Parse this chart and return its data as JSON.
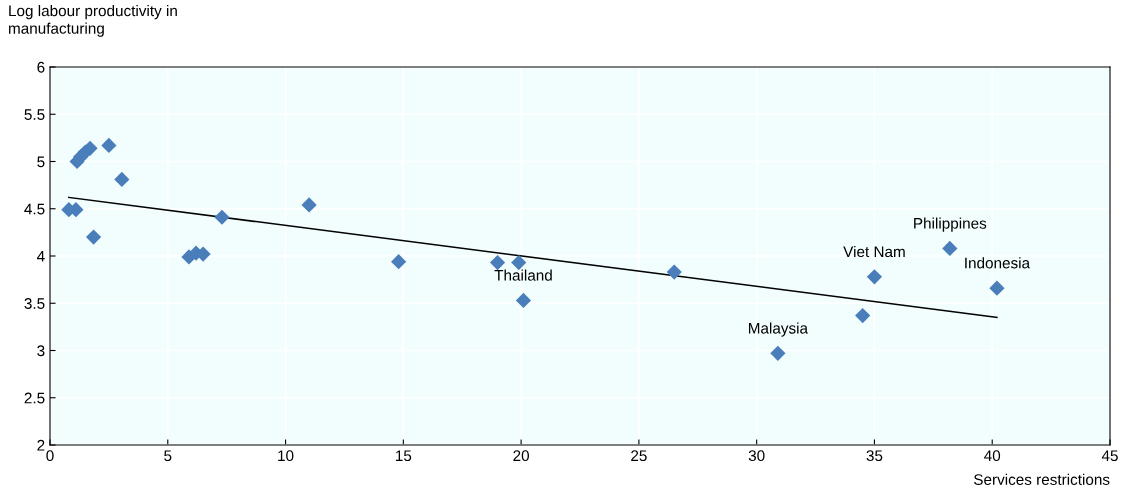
{
  "chart_data": {
    "type": "scatter",
    "xlabel": "Services restrictions",
    "ylabel": "Log labour productivity in\nmanufacturing",
    "xlim": [
      0,
      45
    ],
    "ylim": [
      2,
      6
    ],
    "xticks": [
      0,
      5,
      10,
      15,
      20,
      25,
      30,
      35,
      40,
      45
    ],
    "yticks": [
      2,
      2.5,
      3,
      3.5,
      4,
      4.5,
      5,
      5.5,
      6
    ],
    "grid": true,
    "series": [
      {
        "marker": "diamond",
        "color": "#4a7ebb",
        "x": [
          0.8,
          1.1,
          1.15,
          1.3,
          1.5,
          1.7,
          1.85,
          2.5,
          3.05,
          5.9,
          6.2,
          6.5,
          7.3,
          11.0,
          14.8,
          19.0,
          19.9,
          20.1,
          26.5,
          30.9,
          34.5,
          35.0,
          38.2,
          40.2
        ],
        "values": [
          4.49,
          4.49,
          5.0,
          5.05,
          5.1,
          5.14,
          4.2,
          5.17,
          4.81,
          3.99,
          4.03,
          4.02,
          4.41,
          4.54,
          3.94,
          3.93,
          3.93,
          3.53,
          3.83,
          2.97,
          3.37,
          3.78,
          4.08,
          3.66
        ]
      },
      {
        "type": "line",
        "marker": "none",
        "color": "#000000",
        "x": [
          0.8,
          40.2
        ],
        "values": [
          4.62,
          3.35
        ]
      }
    ],
    "annotations": [
      {
        "text": "Thailand",
        "x": 20.1,
        "y": 3.53
      },
      {
        "text": "Malaysia",
        "x": 30.9,
        "y": 2.97
      },
      {
        "text": "Viet Nam",
        "x": 35.0,
        "y": 3.78
      },
      {
        "text": "Philippines",
        "x": 38.2,
        "y": 4.08
      },
      {
        "text": "Indonesia",
        "x": 40.2,
        "y": 3.66
      }
    ]
  }
}
